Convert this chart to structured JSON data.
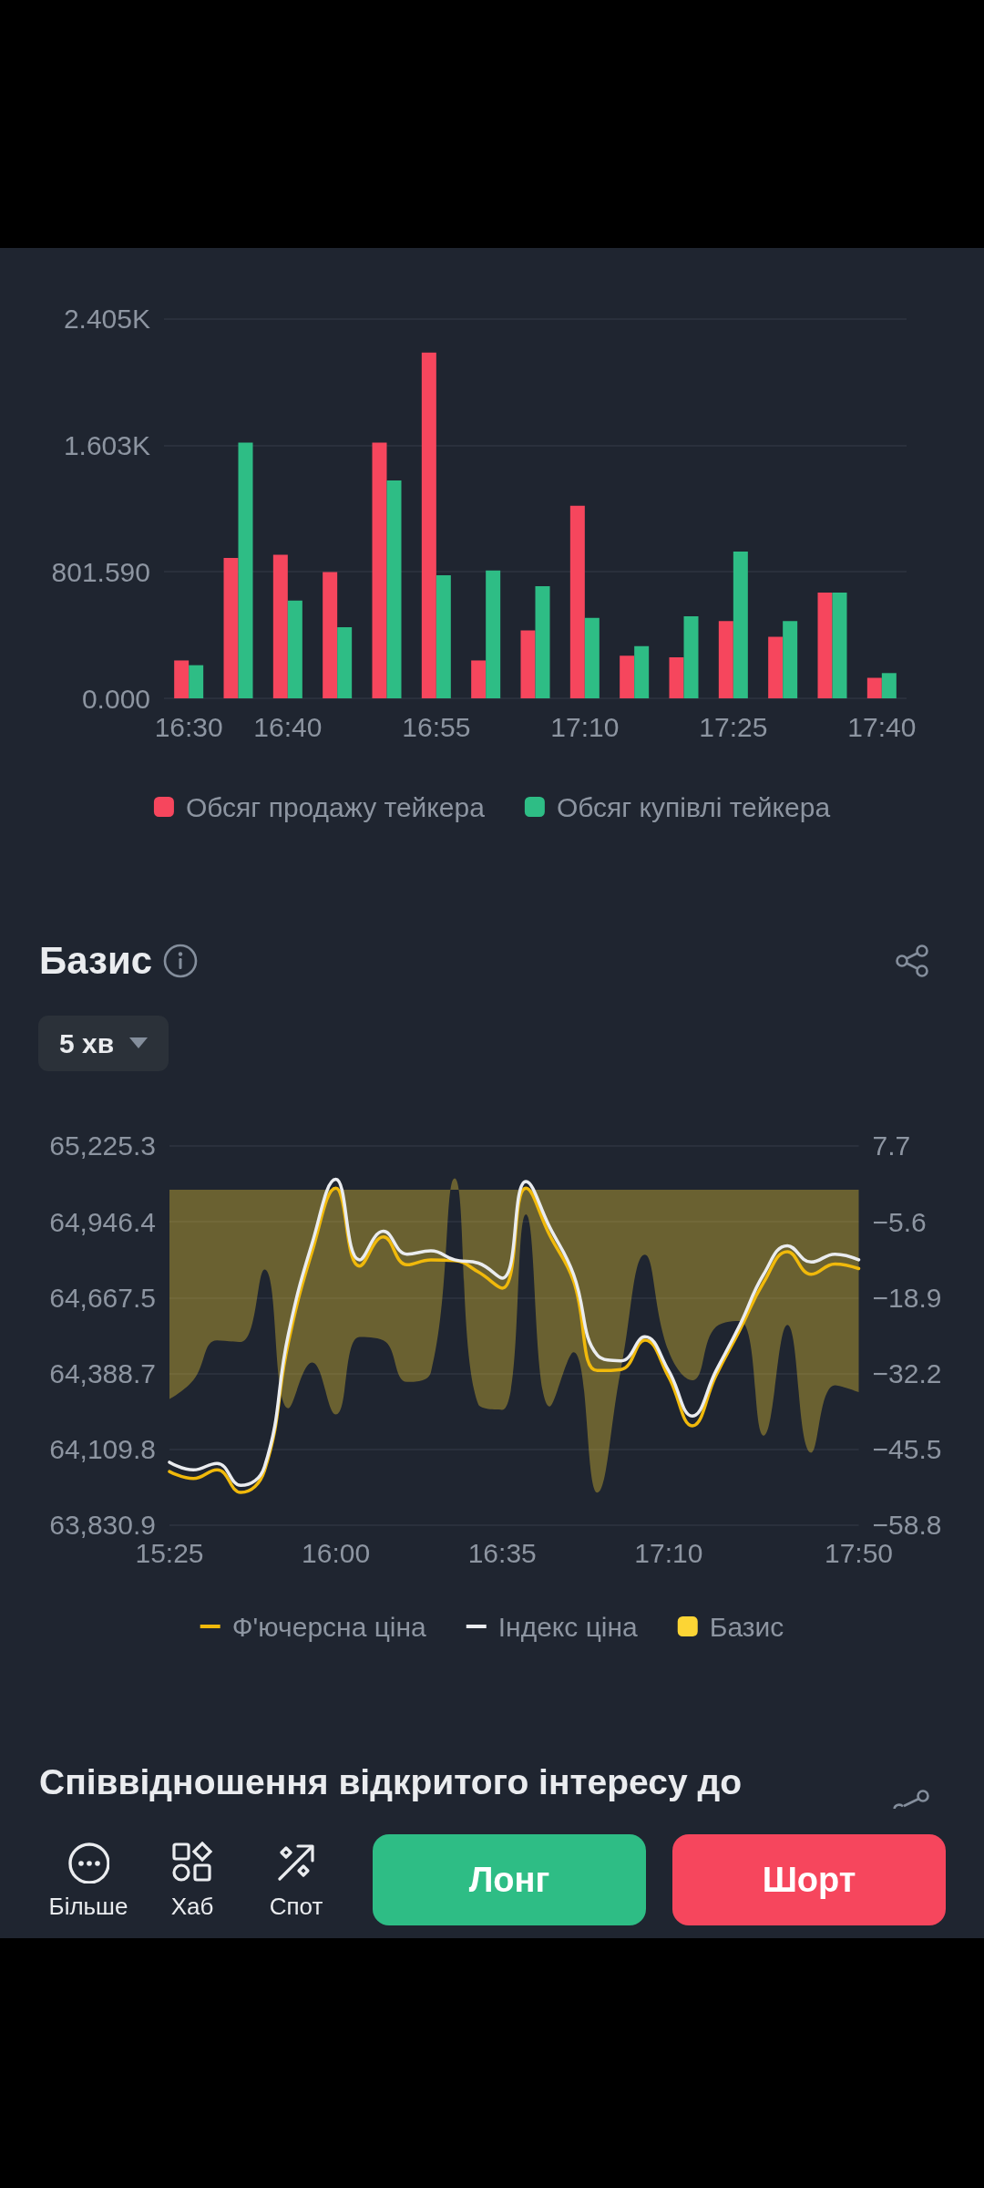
{
  "chart_data": [
    {
      "type": "bar",
      "categories": [
        "16:30",
        null,
        "16:40",
        null,
        null,
        "16:55",
        null,
        null,
        "17:10",
        null,
        null,
        "17:25",
        null,
        null,
        "17:40"
      ],
      "series": [
        {
          "name": "Обсяг продажу тейкера",
          "color": "#f6465d",
          "values": [
            240,
            890,
            910,
            800,
            1620,
            2190,
            240,
            430,
            1220,
            270,
            260,
            490,
            390,
            670,
            130
          ]
        },
        {
          "name": "Обсяг купівлі тейкера",
          "color": "#2ebd85",
          "values": [
            210,
            1620,
            620,
            450,
            1380,
            780,
            810,
            710,
            510,
            330,
            520,
            930,
            490,
            670,
            160
          ]
        }
      ],
      "ylim": [
        0,
        2404.77
      ],
      "yticks": [
        {
          "value": 0,
          "label": "0.000"
        },
        {
          "value": 801.59,
          "label": "801.590"
        },
        {
          "value": 1603.18,
          "label": "1.603K"
        },
        {
          "value": 2404.77,
          "label": "2.405K"
        }
      ],
      "grid": "y",
      "legend": "bottom"
    },
    {
      "type": "line",
      "title": "Базис",
      "annotations": [
        "5 хв"
      ],
      "categories": [
        "15:25",
        null,
        null,
        null,
        null,
        null,
        null,
        "16:00",
        null,
        null,
        null,
        null,
        null,
        null,
        "16:35",
        null,
        null,
        null,
        null,
        null,
        null,
        "17:10",
        null,
        null,
        null,
        null,
        null,
        null,
        null,
        "17:50"
      ],
      "series": [
        {
          "name": "Ф'ючерсна ціна",
          "color": "#f0b90b",
          "values": [
            64028,
            64002,
            64034,
            63951,
            64032,
            64501,
            64836,
            65070,
            64783,
            64890,
            64788,
            64806,
            64803,
            64761,
            64702,
            65070,
            64896,
            64729,
            64399,
            64403,
            64511,
            64376,
            64196,
            64382,
            64549,
            64723,
            64836,
            64753,
            64791,
            64774
          ]
        },
        {
          "name": "Індекс ціна",
          "color": "#eaecef",
          "values": [
            64062,
            64034,
            64058,
            63977,
            64046,
            64531,
            64866,
            65102,
            64806,
            64911,
            64827,
            64839,
            64806,
            64794,
            64739,
            65094,
            64926,
            64753,
            64456,
            64435,
            64523,
            64399,
            64232,
            64399,
            64567,
            64753,
            64858,
            64798,
            64827,
            64806
          ]
        },
        {
          "name": "Базис",
          "type": "area",
          "axis": "y2",
          "color": "#fcd535",
          "values": [
            -36.7,
            -33.4,
            -26.4,
            -26.7,
            -14.0,
            -38.3,
            -30.3,
            -39.4,
            -25.8,
            -26.4,
            -33.7,
            -32.0,
            2.0,
            -37.7,
            -38.6,
            -4.3,
            -38.0,
            -28.5,
            -53.1,
            -31.4,
            -11.4,
            -28.3,
            -33.4,
            -24.0,
            -23.0,
            -43.1,
            -23.7,
            -46.1,
            -34.3,
            -35.5
          ]
        }
      ],
      "ylim": [
        63830.9,
        65225.3
      ],
      "yticks": [
        {
          "value": 63830.9,
          "label": "63,830.9"
        },
        {
          "value": 64109.8,
          "label": "64,109.8"
        },
        {
          "value": 64388.7,
          "label": "64,388.7"
        },
        {
          "value": 64667.5,
          "label": "64,667.5"
        },
        {
          "value": 64946.4,
          "label": "64,946.4"
        },
        {
          "value": 65225.3,
          "label": "65,225.3"
        }
      ],
      "y2lim": [
        -58.8,
        7.7
      ],
      "y2ticks": [
        {
          "value": -58.8,
          "label": "−58.8"
        },
        {
          "value": -45.5,
          "label": "−45.5"
        },
        {
          "value": -32.2,
          "label": "−32.2"
        },
        {
          "value": -18.9,
          "label": "−18.9"
        },
        {
          "value": -5.6,
          "label": "−5.6"
        },
        7.7
      ],
      "grid": "y",
      "legend": "bottom",
      "marker": "none"
    },
    {
      "type": "other",
      "title": "Співвідношення відкритого інтересу до",
      "annotations": [
        "Більше",
        "Хаб",
        "Спот",
        "Лонг",
        "Шорт"
      ]
    }
  ]
}
